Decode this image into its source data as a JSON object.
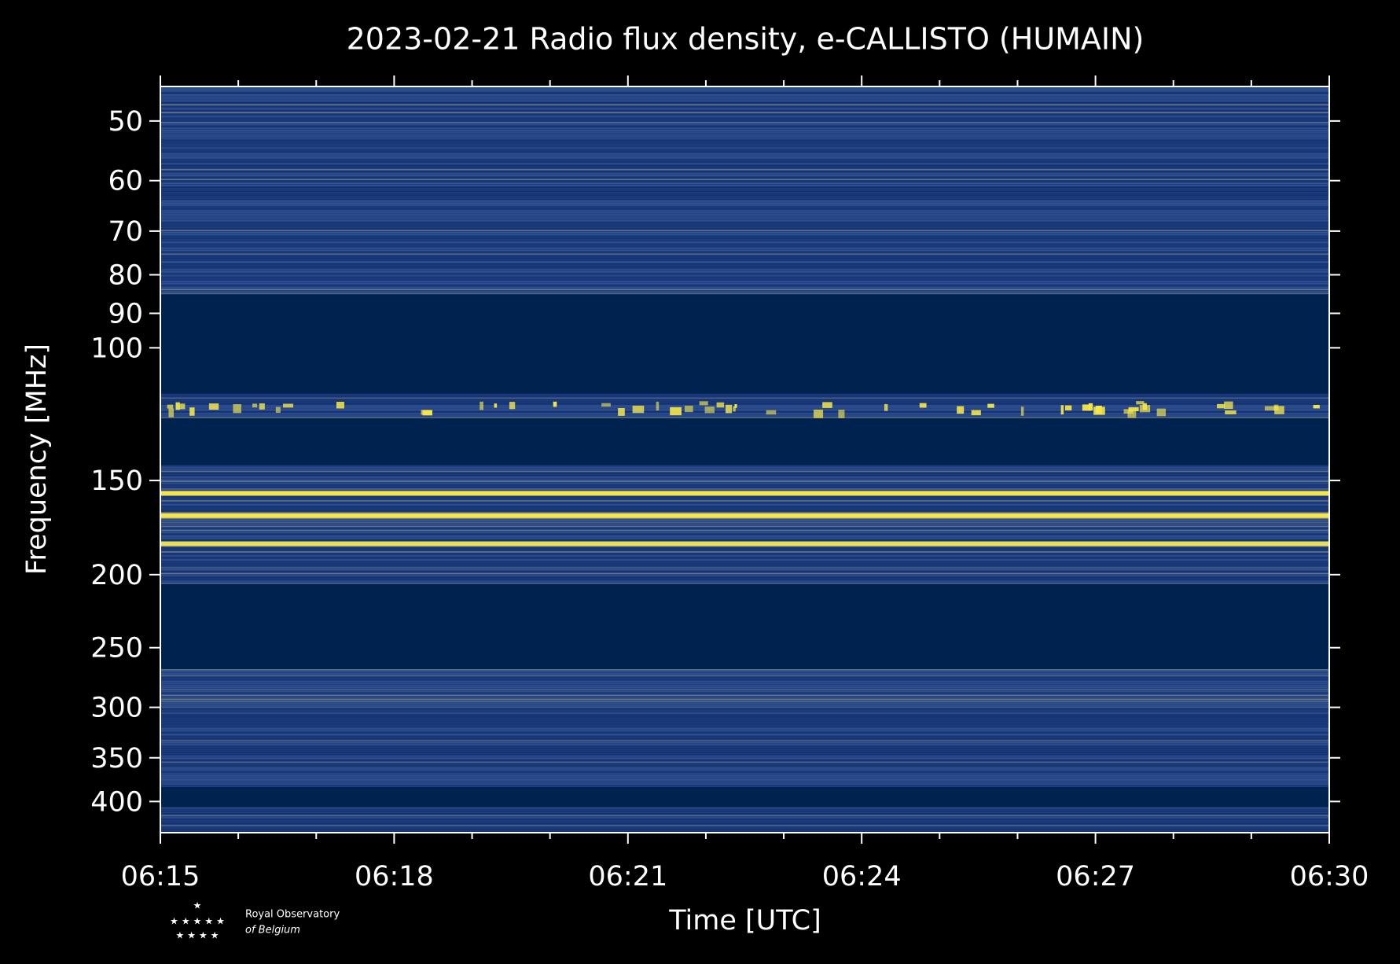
{
  "chart_data": {
    "type": "spectrogram",
    "title": "2023-02-21 Radio flux density, e-CALLISTO (HUMAIN)",
    "x_label": "Time [UTC]",
    "y_label": "Frequency [MHz]",
    "xlim": [
      "06:15",
      "06:30"
    ],
    "xticks": [
      "06:15",
      "06:18",
      "06:21",
      "06:24",
      "06:27",
      "06:30"
    ],
    "xminor_ticks": [
      "06:16",
      "06:17",
      "06:19",
      "06:20",
      "06:22",
      "06:23",
      "06:25",
      "06:26",
      "06:28",
      "06:29"
    ],
    "ylim": [
      45,
      440
    ],
    "yticks": [
      50,
      60,
      70,
      80,
      90,
      100,
      150,
      200,
      250,
      300,
      350,
      400
    ],
    "y_log": true,
    "y_inverted": true,
    "background": "#000000",
    "bands": [
      {
        "from": 45,
        "to": 85,
        "style": "noise",
        "color": "#1e3f82"
      },
      {
        "from": 85,
        "to": 115,
        "style": "dark",
        "color": "#00224e"
      },
      {
        "from": 115,
        "to": 124,
        "style": "burst",
        "color": "#1e3f82"
      },
      {
        "from": 124,
        "to": 143,
        "style": "dark",
        "color": "#00224e"
      },
      {
        "from": 143,
        "to": 206,
        "style": "noise",
        "color": "#1e3f82"
      },
      {
        "from": 206,
        "to": 267,
        "style": "dark",
        "color": "#00224e"
      },
      {
        "from": 267,
        "to": 383,
        "style": "noise",
        "color": "#1e3f82"
      },
      {
        "from": 383,
        "to": 407,
        "style": "dark",
        "color": "#00224e"
      },
      {
        "from": 407,
        "to": 440,
        "style": "noise",
        "color": "#1e3f82"
      }
    ],
    "lines": [
      {
        "freq": 156,
        "color": "#f4e64a"
      },
      {
        "freq": 167,
        "color": "#f4e64a"
      },
      {
        "freq": 182,
        "color": "#e8dc5a"
      }
    ],
    "logo": {
      "line1": "Royal Observatory",
      "line2": "of Belgium"
    }
  }
}
